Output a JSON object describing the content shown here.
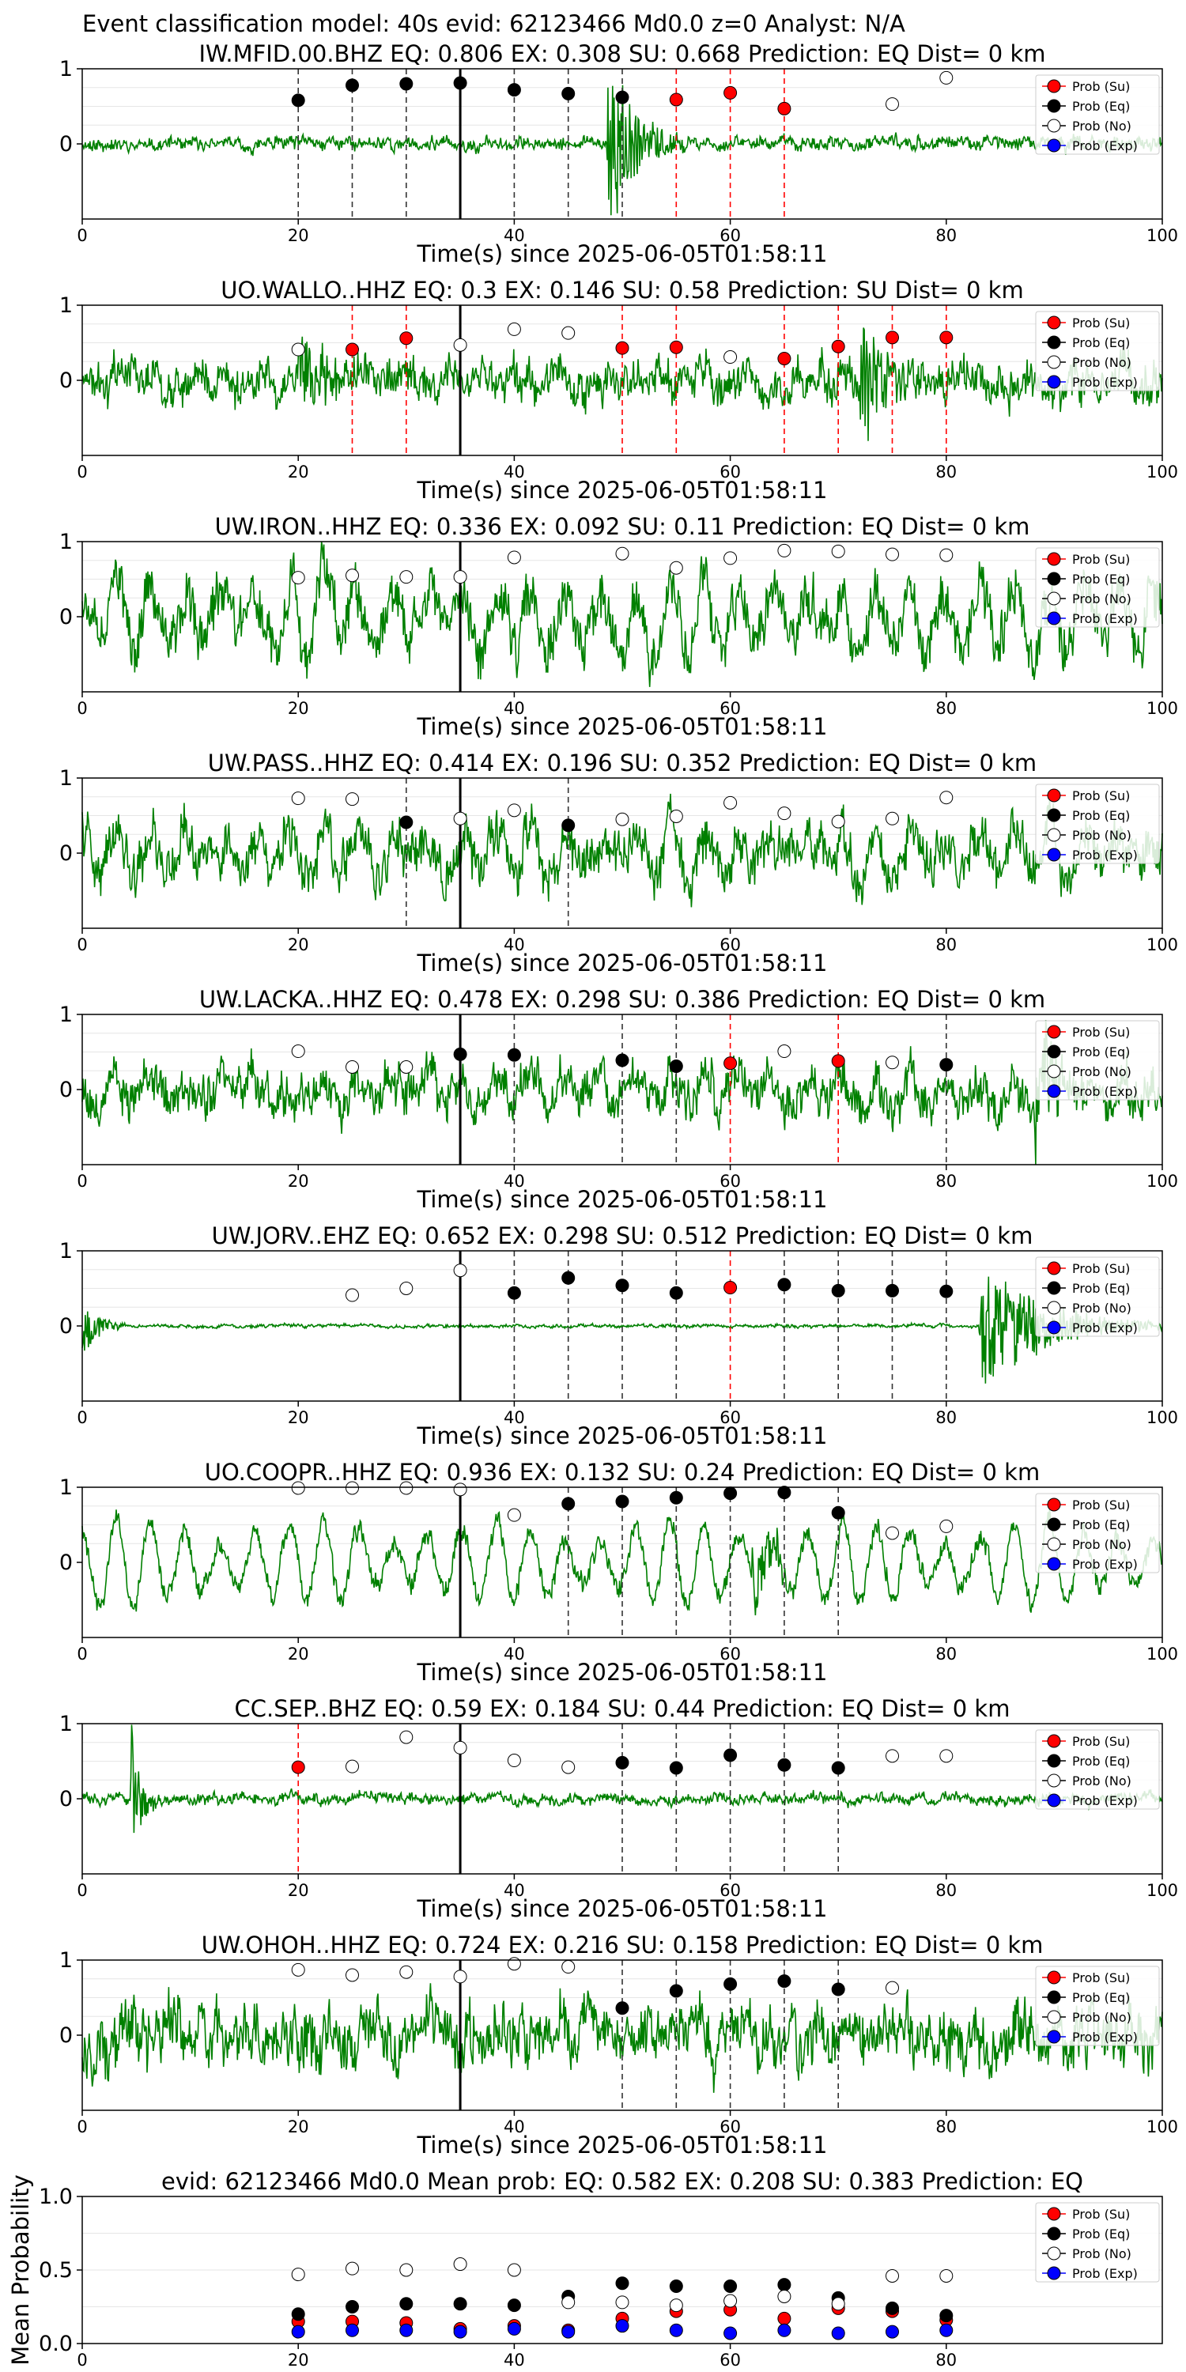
{
  "figure_title": "Event classification model: 40s evid: 62123466 Md0.0 z=0 Analyst: N/A",
  "colors": {
    "waveform": "#008000",
    "su": "#ff0000",
    "eq": "#000000",
    "no": "#ffffff",
    "exp": "#0000ff",
    "pick_line": "#000000",
    "su_line": "#ff0000"
  },
  "legend_labels": [
    "Prob (Su)",
    "Prob (Eq)",
    "Prob (No)",
    "Prob (Exp)"
  ],
  "chart_data": [
    {
      "type": "line+scatter",
      "title": "IW.MFID.00.BHZ   EQ: 0.806  EX: 0.308  SU: 0.668   Prediction: EQ    Dist= 0 km",
      "xlabel": "Time(s) since 2025-06-05T01:58:11",
      "xlim": [
        0,
        100
      ],
      "ylim": [
        -1,
        1
      ],
      "xticks": [
        "0",
        "20",
        "40",
        "60",
        "80",
        "100"
      ],
      "yticks": [
        "1",
        "0"
      ],
      "arrival_time": 35,
      "waveform": {
        "seed": 11,
        "amp": 0.12,
        "bursts": [
          {
            "t": 48.5,
            "dur": 8,
            "amp": 0.95
          }
        ]
      },
      "points": [
        {
          "t": 20,
          "p": 0.58,
          "cls": "eq"
        },
        {
          "t": 25,
          "p": 0.78,
          "cls": "eq"
        },
        {
          "t": 30,
          "p": 0.8,
          "cls": "eq"
        },
        {
          "t": 35,
          "p": 0.81,
          "cls": "eq"
        },
        {
          "t": 40,
          "p": 0.72,
          "cls": "eq"
        },
        {
          "t": 45,
          "p": 0.67,
          "cls": "eq"
        },
        {
          "t": 50,
          "p": 0.62,
          "cls": "eq"
        },
        {
          "t": 55,
          "p": 0.59,
          "cls": "su"
        },
        {
          "t": 60,
          "p": 0.68,
          "cls": "su"
        },
        {
          "t": 65,
          "p": 0.47,
          "cls": "su"
        },
        {
          "t": 75,
          "p": 0.53,
          "cls": "no"
        },
        {
          "t": 80,
          "p": 0.88,
          "cls": "no"
        }
      ]
    },
    {
      "type": "line+scatter",
      "title": "UO.WALLO..HHZ   EQ: 0.3  EX: 0.146  SU: 0.58   Prediction: SU    Dist= 0 km",
      "xlabel": "Time(s) since 2025-06-05T01:58:11",
      "xlim": [
        0,
        100
      ],
      "ylim": [
        -1,
        1
      ],
      "xticks": [
        "0",
        "20",
        "40",
        "60",
        "80",
        "100"
      ],
      "yticks": [
        "1",
        "0"
      ],
      "arrival_time": 35,
      "waveform": {
        "seed": 23,
        "amp": 0.38,
        "bursts": [
          {
            "t": 20,
            "dur": 6,
            "amp": 0.5
          },
          {
            "t": 72,
            "dur": 6,
            "amp": 0.65
          }
        ]
      },
      "points": [
        {
          "t": 20,
          "p": 0.41,
          "cls": "no"
        },
        {
          "t": 25,
          "p": 0.41,
          "cls": "su"
        },
        {
          "t": 30,
          "p": 0.56,
          "cls": "su"
        },
        {
          "t": 35,
          "p": 0.47,
          "cls": "no"
        },
        {
          "t": 40,
          "p": 0.68,
          "cls": "no"
        },
        {
          "t": 45,
          "p": 0.63,
          "cls": "no"
        },
        {
          "t": 50,
          "p": 0.43,
          "cls": "su"
        },
        {
          "t": 55,
          "p": 0.44,
          "cls": "su"
        },
        {
          "t": 60,
          "p": 0.31,
          "cls": "no"
        },
        {
          "t": 65,
          "p": 0.29,
          "cls": "su"
        },
        {
          "t": 70,
          "p": 0.45,
          "cls": "su"
        },
        {
          "t": 75,
          "p": 0.57,
          "cls": "su"
        },
        {
          "t": 80,
          "p": 0.57,
          "cls": "su"
        }
      ]
    },
    {
      "type": "line+scatter",
      "title": "UW.IRON..HHZ   EQ: 0.336  EX: 0.092  SU: 0.11   Prediction: EQ    Dist= 0 km",
      "xlabel": "Time(s) since 2025-06-05T01:58:11",
      "xlim": [
        0,
        100
      ],
      "ylim": [
        -1,
        1
      ],
      "xticks": [
        "0",
        "20",
        "40",
        "60",
        "80",
        "100"
      ],
      "yticks": [
        "1",
        "0"
      ],
      "arrival_time": 35,
      "waveform": {
        "seed": 37,
        "amp": 0.5,
        "osc": 0.45,
        "bursts": []
      },
      "points": [
        {
          "t": 20,
          "p": 0.52,
          "cls": "no"
        },
        {
          "t": 25,
          "p": 0.55,
          "cls": "no"
        },
        {
          "t": 30,
          "p": 0.53,
          "cls": "no"
        },
        {
          "t": 35,
          "p": 0.53,
          "cls": "no"
        },
        {
          "t": 40,
          "p": 0.79,
          "cls": "no"
        },
        {
          "t": 50,
          "p": 0.84,
          "cls": "no"
        },
        {
          "t": 55,
          "p": 0.65,
          "cls": "no"
        },
        {
          "t": 60,
          "p": 0.78,
          "cls": "no"
        },
        {
          "t": 65,
          "p": 0.88,
          "cls": "no"
        },
        {
          "t": 70,
          "p": 0.87,
          "cls": "no"
        },
        {
          "t": 75,
          "p": 0.83,
          "cls": "no"
        },
        {
          "t": 80,
          "p": 0.82,
          "cls": "no"
        }
      ]
    },
    {
      "type": "line+scatter",
      "title": "UW.PASS..HHZ   EQ: 0.414  EX: 0.196  SU: 0.352   Prediction: EQ    Dist= 0 km",
      "xlabel": "Time(s) since 2025-06-05T01:58:11",
      "xlim": [
        0,
        100
      ],
      "ylim": [
        -1,
        1
      ],
      "xticks": [
        "0",
        "20",
        "40",
        "60",
        "80",
        "100"
      ],
      "yticks": [
        "1",
        "0"
      ],
      "arrival_time": 35,
      "waveform": {
        "seed": 41,
        "amp": 0.45,
        "osc": 0.3,
        "bursts": []
      },
      "points": [
        {
          "t": 20,
          "p": 0.73,
          "cls": "no"
        },
        {
          "t": 25,
          "p": 0.72,
          "cls": "no"
        },
        {
          "t": 30,
          "p": 0.41,
          "cls": "eq"
        },
        {
          "t": 35,
          "p": 0.46,
          "cls": "no"
        },
        {
          "t": 40,
          "p": 0.57,
          "cls": "no"
        },
        {
          "t": 45,
          "p": 0.37,
          "cls": "eq"
        },
        {
          "t": 50,
          "p": 0.45,
          "cls": "no"
        },
        {
          "t": 55,
          "p": 0.49,
          "cls": "no"
        },
        {
          "t": 60,
          "p": 0.67,
          "cls": "no"
        },
        {
          "t": 65,
          "p": 0.53,
          "cls": "no"
        },
        {
          "t": 70,
          "p": 0.42,
          "cls": "no"
        },
        {
          "t": 75,
          "p": 0.46,
          "cls": "no"
        },
        {
          "t": 80,
          "p": 0.74,
          "cls": "no"
        }
      ]
    },
    {
      "type": "line+scatter",
      "title": "UW.LACKA..HHZ   EQ: 0.478  EX: 0.298  SU: 0.386   Prediction: EQ    Dist= 0 km",
      "xlabel": "Time(s) since 2025-06-05T01:58:11",
      "xlim": [
        0,
        100
      ],
      "ylim": [
        -1,
        1
      ],
      "xticks": [
        "0",
        "20",
        "40",
        "60",
        "80",
        "100"
      ],
      "yticks": [
        "1",
        "0"
      ],
      "arrival_time": 35,
      "waveform": {
        "seed": 53,
        "amp": 0.42,
        "osc": 0.15,
        "bursts": [
          {
            "t": 88,
            "dur": 10,
            "amp": 0.45
          }
        ]
      },
      "points": [
        {
          "t": 20,
          "p": 0.51,
          "cls": "no"
        },
        {
          "t": 25,
          "p": 0.3,
          "cls": "no"
        },
        {
          "t": 30,
          "p": 0.3,
          "cls": "no"
        },
        {
          "t": 35,
          "p": 0.47,
          "cls": "eq"
        },
        {
          "t": 40,
          "p": 0.46,
          "cls": "eq"
        },
        {
          "t": 50,
          "p": 0.39,
          "cls": "eq"
        },
        {
          "t": 55,
          "p": 0.31,
          "cls": "eq"
        },
        {
          "t": 60,
          "p": 0.35,
          "cls": "su"
        },
        {
          "t": 65,
          "p": 0.51,
          "cls": "no"
        },
        {
          "t": 70,
          "p": 0.38,
          "cls": "su"
        },
        {
          "t": 75,
          "p": 0.36,
          "cls": "no"
        },
        {
          "t": 80,
          "p": 0.33,
          "cls": "eq"
        }
      ]
    },
    {
      "type": "line+scatter",
      "title": "UW.JORV..EHZ   EQ: 0.652  EX: 0.298  SU: 0.512   Prediction: EQ    Dist= 0 km",
      "xlabel": "Time(s) since 2025-06-05T01:58:11",
      "xlim": [
        0,
        100
      ],
      "ylim": [
        -1,
        1
      ],
      "xticks": [
        "0",
        "20",
        "40",
        "60",
        "80",
        "100"
      ],
      "yticks": [
        "1",
        "0"
      ],
      "arrival_time": 35,
      "waveform": {
        "seed": 67,
        "amp": 0.03,
        "bursts": [
          {
            "t": 0,
            "dur": 4,
            "amp": 0.3
          },
          {
            "t": 83,
            "dur": 17,
            "amp": 0.7
          }
        ]
      },
      "points": [
        {
          "t": 25,
          "p": 0.41,
          "cls": "no"
        },
        {
          "t": 30,
          "p": 0.5,
          "cls": "no"
        },
        {
          "t": 35,
          "p": 0.74,
          "cls": "no"
        },
        {
          "t": 40,
          "p": 0.44,
          "cls": "eq"
        },
        {
          "t": 45,
          "p": 0.64,
          "cls": "eq"
        },
        {
          "t": 50,
          "p": 0.54,
          "cls": "eq"
        },
        {
          "t": 55,
          "p": 0.44,
          "cls": "eq"
        },
        {
          "t": 60,
          "p": 0.51,
          "cls": "su"
        },
        {
          "t": 65,
          "p": 0.55,
          "cls": "eq"
        },
        {
          "t": 70,
          "p": 0.47,
          "cls": "eq"
        },
        {
          "t": 75,
          "p": 0.47,
          "cls": "eq"
        },
        {
          "t": 80,
          "p": 0.46,
          "cls": "eq"
        }
      ]
    },
    {
      "type": "line+scatter",
      "title": "UO.COOPR..HHZ   EQ: 0.936  EX: 0.132  SU: 0.24   Prediction: EQ    Dist= 0 km",
      "xlabel": "Time(s) since 2025-06-05T01:58:11",
      "xlim": [
        0,
        100
      ],
      "ylim": [
        -1,
        1
      ],
      "xticks": [
        "0",
        "20",
        "40",
        "60",
        "80",
        "100"
      ],
      "yticks": [
        "1",
        "0"
      ],
      "arrival_time": 35,
      "waveform": {
        "seed": 79,
        "amp": 0.2,
        "osc": 0.55,
        "bursts": [
          {
            "t": 62,
            "dur": 6,
            "amp": 0.4
          }
        ]
      },
      "points": [
        {
          "t": 20,
          "p": 0.99,
          "cls": "no"
        },
        {
          "t": 25,
          "p": 0.99,
          "cls": "no"
        },
        {
          "t": 30,
          "p": 0.99,
          "cls": "no"
        },
        {
          "t": 35,
          "p": 0.97,
          "cls": "no"
        },
        {
          "t": 40,
          "p": 0.63,
          "cls": "no"
        },
        {
          "t": 45,
          "p": 0.78,
          "cls": "eq"
        },
        {
          "t": 50,
          "p": 0.81,
          "cls": "eq"
        },
        {
          "t": 55,
          "p": 0.86,
          "cls": "eq"
        },
        {
          "t": 60,
          "p": 0.92,
          "cls": "eq"
        },
        {
          "t": 65,
          "p": 0.93,
          "cls": "eq"
        },
        {
          "t": 70,
          "p": 0.66,
          "cls": "eq"
        },
        {
          "t": 75,
          "p": 0.39,
          "cls": "no"
        },
        {
          "t": 80,
          "p": 0.48,
          "cls": "no"
        }
      ]
    },
    {
      "type": "line+scatter",
      "title": "CC.SEP..BHZ   EQ: 0.59  EX: 0.184  SU: 0.44   Prediction: EQ    Dist= 0 km",
      "xlabel": "Time(s) since 2025-06-05T01:58:11",
      "xlim": [
        0,
        100
      ],
      "ylim": [
        -1,
        1
      ],
      "xticks": [
        "0",
        "20",
        "40",
        "60",
        "80",
        "100"
      ],
      "yticks": [
        "1",
        "0"
      ],
      "arrival_time": 35,
      "waveform": {
        "seed": 83,
        "amp": 0.1,
        "bursts": [
          {
            "t": 4.5,
            "dur": 2.5,
            "amp": 0.9
          }
        ]
      },
      "points": [
        {
          "t": 20,
          "p": 0.42,
          "cls": "su"
        },
        {
          "t": 25,
          "p": 0.43,
          "cls": "no"
        },
        {
          "t": 30,
          "p": 0.82,
          "cls": "no"
        },
        {
          "t": 35,
          "p": 0.68,
          "cls": "no"
        },
        {
          "t": 40,
          "p": 0.51,
          "cls": "no"
        },
        {
          "t": 45,
          "p": 0.42,
          "cls": "no"
        },
        {
          "t": 50,
          "p": 0.48,
          "cls": "eq"
        },
        {
          "t": 55,
          "p": 0.41,
          "cls": "eq"
        },
        {
          "t": 60,
          "p": 0.58,
          "cls": "eq"
        },
        {
          "t": 65,
          "p": 0.45,
          "cls": "eq"
        },
        {
          "t": 70,
          "p": 0.41,
          "cls": "eq"
        },
        {
          "t": 75,
          "p": 0.57,
          "cls": "no"
        },
        {
          "t": 80,
          "p": 0.57,
          "cls": "no"
        }
      ]
    },
    {
      "type": "line+scatter",
      "title": "UW.OHOH..HHZ   EQ: 0.724  EX: 0.216  SU: 0.158   Prediction: EQ    Dist= 0 km",
      "xlabel": "Time(s) since 2025-06-05T01:58:11",
      "xlim": [
        0,
        100
      ],
      "ylim": [
        -1,
        1
      ],
      "xticks": [
        "0",
        "20",
        "40",
        "60",
        "80",
        "100"
      ],
      "yticks": [
        "1",
        "0"
      ],
      "arrival_time": 35,
      "waveform": {
        "seed": 97,
        "amp": 0.55,
        "bursts": []
      },
      "points": [
        {
          "t": 20,
          "p": 0.87,
          "cls": "no"
        },
        {
          "t": 25,
          "p": 0.8,
          "cls": "no"
        },
        {
          "t": 30,
          "p": 0.84,
          "cls": "no"
        },
        {
          "t": 35,
          "p": 0.78,
          "cls": "no"
        },
        {
          "t": 40,
          "p": 0.95,
          "cls": "no"
        },
        {
          "t": 45,
          "p": 0.91,
          "cls": "no"
        },
        {
          "t": 50,
          "p": 0.36,
          "cls": "eq"
        },
        {
          "t": 55,
          "p": 0.59,
          "cls": "eq"
        },
        {
          "t": 60,
          "p": 0.68,
          "cls": "eq"
        },
        {
          "t": 65,
          "p": 0.72,
          "cls": "eq"
        },
        {
          "t": 70,
          "p": 0.61,
          "cls": "eq"
        },
        {
          "t": 75,
          "p": 0.63,
          "cls": "no"
        }
      ]
    },
    {
      "type": "scatter",
      "title": "evid: 62123466  Md0.0   Mean prob:   EQ: 0.582  EX: 0.208  SU: 0.383   Prediction: EQ",
      "ylabel": "Mean Probability",
      "xlim": [
        0,
        100
      ],
      "ylim": [
        0,
        1
      ],
      "xticks": [
        "0",
        "20",
        "40",
        "60",
        "80"
      ],
      "yticks": [
        "1.0",
        "0.5",
        "0.0"
      ],
      "x": [
        20,
        25,
        30,
        35,
        40,
        45,
        50,
        55,
        60,
        65,
        70,
        75,
        80
      ],
      "series": [
        {
          "name": "Prob (Su)",
          "cls": "su",
          "values": [
            0.15,
            0.15,
            0.14,
            0.1,
            0.12,
            0.09,
            0.17,
            0.22,
            0.23,
            0.17,
            0.24,
            0.22,
            0.16
          ]
        },
        {
          "name": "Prob (Eq)",
          "cls": "eq",
          "values": [
            0.2,
            0.25,
            0.27,
            0.27,
            0.26,
            0.32,
            0.41,
            0.39,
            0.39,
            0.4,
            0.31,
            0.24,
            0.19
          ]
        },
        {
          "name": "Prob (No)",
          "cls": "no",
          "values": [
            0.47,
            0.51,
            0.5,
            0.54,
            0.5,
            0.28,
            0.28,
            0.26,
            0.29,
            0.32,
            0.27,
            0.46,
            0.46
          ]
        },
        {
          "name": "Prob (Exp)",
          "cls": "exp",
          "values": [
            0.08,
            0.09,
            0.09,
            0.08,
            0.1,
            0.08,
            0.12,
            0.09,
            0.07,
            0.09,
            0.07,
            0.08,
            0.09
          ]
        }
      ]
    }
  ]
}
